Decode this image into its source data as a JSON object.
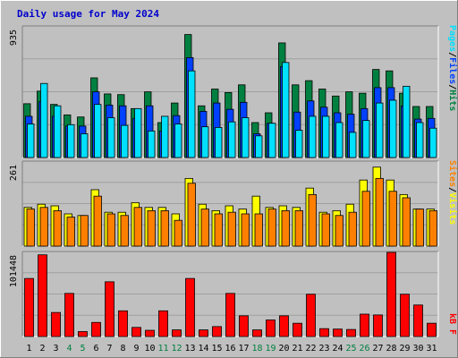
{
  "colors": {
    "bg": "#C0C0C0",
    "panel": "#C0C0C0",
    "grid": "#A0A0A0",
    "hits": "#008040",
    "files": "#0040FF",
    "pages": "#00E0FF",
    "visits": "#FFFF00",
    "sites": "#FF8000",
    "kbytes": "#FF0000",
    "weekend": "#008040",
    "weekday": "#000000",
    "title": "#0000CC"
  },
  "chart_data": [
    {
      "type": "bar",
      "title": "Daily usage for May 2024",
      "y_max_label": "935",
      "ylim": [
        0,
        935
      ],
      "categories": [
        "1",
        "2",
        "3",
        "4",
        "5",
        "6",
        "7",
        "8",
        "9",
        "10",
        "11",
        "12",
        "13",
        "14",
        "15",
        "16",
        "17",
        "18",
        "19",
        "20",
        "21",
        "22",
        "23",
        "24",
        "25",
        "26",
        "27",
        "28",
        "29",
        "30",
        "31"
      ],
      "weekend_days": [
        "4",
        "5",
        "11",
        "12",
        "18",
        "19",
        "25",
        "26"
      ],
      "legend": {
        "labels": [
          "Pages",
          "Files",
          "Hits"
        ],
        "separator": "/"
      },
      "series": [
        {
          "name": "Hits",
          "values": [
            385,
            475,
            380,
            305,
            290,
            570,
            455,
            450,
            350,
            470,
            250,
            390,
            880,
            370,
            490,
            465,
            520,
            250,
            320,
            820,
            520,
            550,
            490,
            440,
            470,
            460,
            630,
            620,
            460,
            365,
            365
          ]
        },
        {
          "name": "Files",
          "values": [
            295,
            400,
            295,
            225,
            225,
            470,
            375,
            370,
            280,
            370,
            190,
            300,
            715,
            330,
            390,
            345,
            395,
            170,
            245,
            650,
            325,
            405,
            360,
            320,
            310,
            350,
            500,
            500,
            370,
            275,
            280
          ]
        },
        {
          "name": "Pages",
          "values": [
            240,
            530,
            370,
            235,
            170,
            380,
            285,
            230,
            350,
            190,
            295,
            240,
            620,
            220,
            215,
            255,
            285,
            155,
            245,
            680,
            195,
            295,
            295,
            250,
            180,
            265,
            390,
            410,
            510,
            250,
            210
          ]
        }
      ]
    },
    {
      "type": "bar",
      "y_max_label": "261",
      "ylim": [
        0,
        261
      ],
      "categories": [
        "1",
        "2",
        "3",
        "4",
        "5",
        "6",
        "7",
        "8",
        "9",
        "10",
        "11",
        "12",
        "13",
        "14",
        "15",
        "16",
        "17",
        "18",
        "19",
        "20",
        "21",
        "22",
        "23",
        "24",
        "25",
        "26",
        "27",
        "28",
        "29",
        "30",
        "31"
      ],
      "legend": {
        "labels": [
          "Sites",
          "Visits"
        ],
        "separator": "/"
      },
      "series": [
        {
          "name": "Visits",
          "values": [
            120,
            130,
            125,
            100,
            95,
            175,
            105,
            105,
            135,
            120,
            120,
            100,
            210,
            130,
            110,
            125,
            115,
            155,
            120,
            125,
            120,
            180,
            105,
            110,
            130,
            205,
            245,
            205,
            160,
            115,
            115
          ]
        },
        {
          "name": "Sites",
          "values": [
            115,
            120,
            110,
            90,
            95,
            155,
            100,
            95,
            120,
            110,
            110,
            80,
            195,
            115,
            100,
            105,
            100,
            100,
            115,
            110,
            110,
            160,
            100,
            95,
            105,
            170,
            210,
            170,
            150,
            115,
            110
          ]
        }
      ]
    },
    {
      "type": "bar",
      "y_max_label": "101448",
      "ylim": [
        0,
        101448
      ],
      "categories": [
        "1",
        "2",
        "3",
        "4",
        "5",
        "6",
        "7",
        "8",
        "9",
        "10",
        "11",
        "12",
        "13",
        "14",
        "15",
        "16",
        "17",
        "18",
        "19",
        "20",
        "21",
        "22",
        "23",
        "24",
        "25",
        "26",
        "27",
        "28",
        "29",
        "30",
        "31"
      ],
      "legend": {
        "labels": [
          "kB F"
        ]
      },
      "series": [
        {
          "name": "kB F",
          "values": [
            70000,
            98500,
            29000,
            52000,
            6000,
            17000,
            66000,
            31000,
            11000,
            7500,
            31000,
            8000,
            70000,
            8000,
            12000,
            52000,
            25000,
            8000,
            20000,
            25000,
            16000,
            51000,
            9500,
            9000,
            8500,
            27000,
            26000,
            101448,
            51000,
            38000,
            16000
          ]
        }
      ]
    }
  ]
}
